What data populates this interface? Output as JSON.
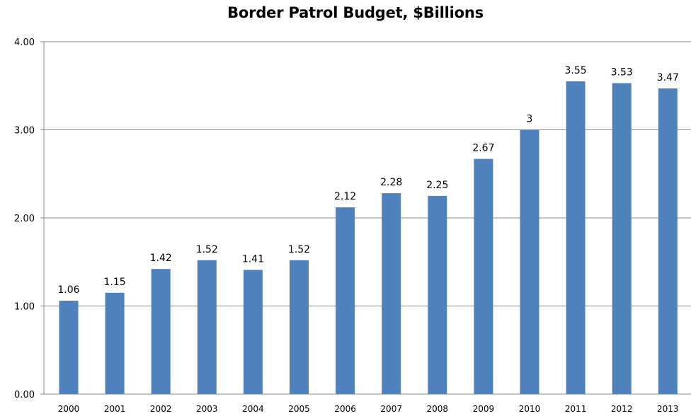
{
  "chart_data": {
    "type": "bar",
    "title": "Border Patrol Budget, $Billions",
    "xlabel": "",
    "ylabel": "",
    "categories": [
      "2000",
      "2001",
      "2002",
      "2003",
      "2004",
      "2005",
      "2006",
      "2007",
      "2008",
      "2009",
      "2010",
      "2011",
      "2012",
      "2013"
    ],
    "values": [
      1.06,
      1.15,
      1.42,
      1.52,
      1.41,
      1.52,
      2.12,
      2.28,
      2.25,
      2.67,
      3,
      3.55,
      3.53,
      3.47
    ],
    "data_labels": [
      "1.06",
      "1.15",
      "1.42",
      "1.52",
      "1.41",
      "1.52",
      "2.12",
      "2.28",
      "2.25",
      "2.67",
      "3",
      "3.55",
      "3.53",
      "3.47"
    ],
    "ylim": [
      0,
      4
    ],
    "y_ticks": [
      0,
      1,
      2,
      3,
      4
    ],
    "y_tick_labels": [
      "0.00",
      "1.00",
      "2.00",
      "3.00",
      "4.00"
    ],
    "grid": true,
    "legend": "none",
    "colors": {
      "bar": "#4F81BD",
      "grid": "#8C8C8C",
      "axis": "#8C8C8C"
    }
  }
}
